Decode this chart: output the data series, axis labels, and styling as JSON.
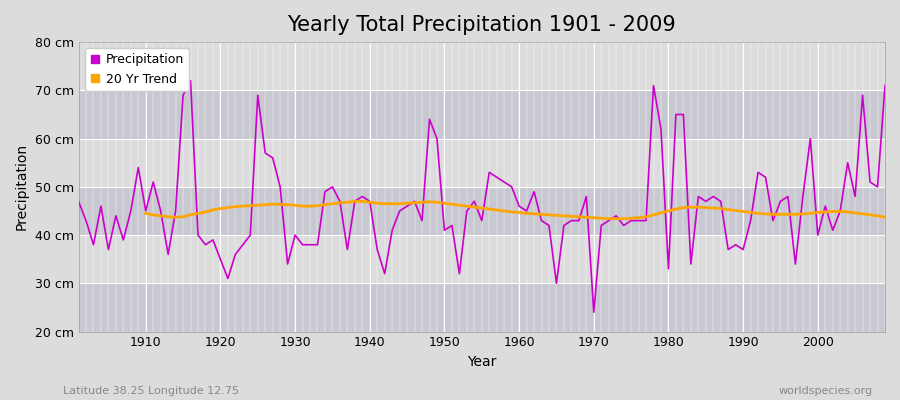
{
  "title": "Yearly Total Precipitation 1901 - 2009",
  "xlabel": "Year",
  "ylabel": "Precipitation",
  "subtitle": "Latitude 38.25 Longitude 12.75",
  "watermark": "worldspecies.org",
  "years": [
    1901,
    1902,
    1903,
    1904,
    1905,
    1906,
    1907,
    1908,
    1909,
    1910,
    1911,
    1912,
    1913,
    1914,
    1915,
    1916,
    1917,
    1918,
    1919,
    1920,
    1921,
    1922,
    1923,
    1924,
    1925,
    1926,
    1927,
    1928,
    1929,
    1930,
    1931,
    1932,
    1933,
    1934,
    1935,
    1936,
    1937,
    1938,
    1939,
    1940,
    1941,
    1942,
    1943,
    1944,
    1945,
    1946,
    1947,
    1948,
    1949,
    1950,
    1951,
    1952,
    1953,
    1954,
    1955,
    1956,
    1957,
    1958,
    1959,
    1960,
    1961,
    1962,
    1963,
    1964,
    1965,
    1966,
    1967,
    1968,
    1969,
    1970,
    1971,
    1972,
    1973,
    1974,
    1975,
    1976,
    1977,
    1978,
    1979,
    1980,
    1981,
    1982,
    1983,
    1984,
    1985,
    1986,
    1987,
    1988,
    1989,
    1990,
    1991,
    1992,
    1993,
    1994,
    1995,
    1996,
    1997,
    1998,
    1999,
    2000,
    2001,
    2002,
    2003,
    2004,
    2005,
    2006,
    2007,
    2008,
    2009
  ],
  "precipitation": [
    47,
    43,
    38,
    46,
    37,
    44,
    39,
    45,
    54,
    45,
    51,
    45,
    36,
    45,
    69,
    72,
    40,
    38,
    39,
    35,
    31,
    36,
    38,
    40,
    69,
    57,
    56,
    50,
    34,
    40,
    38,
    38,
    38,
    49,
    50,
    47,
    37,
    47,
    48,
    47,
    37,
    32,
    41,
    45,
    46,
    47,
    43,
    64,
    60,
    41,
    42,
    32,
    45,
    47,
    43,
    53,
    52,
    51,
    50,
    46,
    45,
    49,
    43,
    42,
    30,
    42,
    43,
    43,
    48,
    24,
    42,
    43,
    44,
    42,
    43,
    43,
    43,
    71,
    62,
    33,
    65,
    65,
    34,
    48,
    47,
    48,
    47,
    37,
    38,
    37,
    43,
    53,
    52,
    43,
    47,
    48,
    34,
    48,
    60,
    40,
    46,
    41,
    45,
    55,
    48,
    69,
    51,
    50,
    71
  ],
  "trend": [
    null,
    null,
    null,
    null,
    null,
    null,
    null,
    null,
    null,
    44.5,
    44.2,
    44.0,
    43.8,
    43.7,
    43.8,
    44.2,
    44.5,
    44.8,
    45.2,
    45.5,
    45.7,
    45.9,
    46.0,
    46.1,
    46.2,
    46.3,
    46.4,
    46.4,
    46.3,
    46.2,
    46.0,
    46.0,
    46.1,
    46.3,
    46.5,
    46.7,
    46.8,
    47.0,
    47.0,
    46.8,
    46.6,
    46.5,
    46.5,
    46.5,
    46.6,
    46.7,
    46.8,
    46.9,
    46.8,
    46.6,
    46.4,
    46.2,
    46.0,
    45.8,
    45.6,
    45.4,
    45.2,
    45.0,
    44.8,
    44.7,
    44.5,
    44.4,
    44.3,
    44.2,
    44.1,
    44.0,
    43.9,
    43.8,
    43.7,
    43.6,
    43.5,
    43.4,
    43.4,
    43.4,
    43.5,
    43.6,
    43.8,
    44.2,
    44.6,
    45.0,
    45.4,
    45.7,
    45.8,
    45.8,
    45.7,
    45.6,
    45.5,
    45.3,
    45.1,
    44.9,
    44.7,
    44.5,
    44.4,
    44.3,
    44.3,
    44.3,
    44.3,
    44.4,
    44.5,
    44.7,
    44.8,
    44.9,
    44.9,
    44.8,
    44.6,
    44.4,
    44.2,
    44.0,
    43.7
  ],
  "precip_color": "#CC00CC",
  "trend_color": "#FFA500",
  "bg_color": "#DCDCDC",
  "band_light": "#DCDCDC",
  "band_dark": "#C8C8D0",
  "grid_color": "#FFFFFF",
  "ylim": [
    20,
    80
  ],
  "yticks": [
    20,
    30,
    40,
    50,
    60,
    70,
    80
  ],
  "ytick_labels": [
    "20 cm",
    "30 cm",
    "40 cm",
    "50 cm",
    "60 cm",
    "70 cm",
    "80 cm"
  ],
  "xlim_start": 1901,
  "xlim_end": 2009,
  "xticks": [
    1910,
    1920,
    1930,
    1940,
    1950,
    1960,
    1970,
    1980,
    1990,
    2000
  ],
  "title_fontsize": 15,
  "axis_label_fontsize": 10,
  "tick_fontsize": 9,
  "legend_fontsize": 9,
  "subtitle_color": "#888888",
  "watermark_color": "#888888"
}
